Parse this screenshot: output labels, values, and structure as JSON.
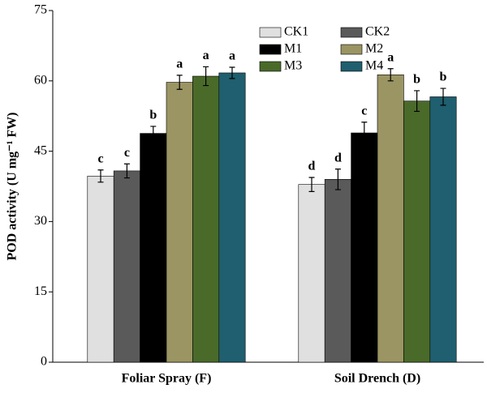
{
  "chart_data": {
    "type": "bar",
    "y_label": "POD activity (U mg⁻¹ FW)",
    "categories": [
      "Foliar Spray (F)",
      "Soil Drench (D)"
    ],
    "ylim": [
      0,
      75
    ],
    "yticks": [
      0,
      15,
      30,
      45,
      60,
      75
    ],
    "series": [
      {
        "name": "CK1",
        "color": "#e0e0e0",
        "values": [
          39.7,
          37.9
        ],
        "errors": [
          1.3,
          1.5
        ],
        "labels": [
          "c",
          "d"
        ]
      },
      {
        "name": "CK2",
        "color": "#5a5a5a",
        "values": [
          40.8,
          39.0
        ],
        "errors": [
          1.5,
          2.2
        ],
        "labels": [
          "c",
          "d"
        ]
      },
      {
        "name": "M1",
        "color": "#000000",
        "values": [
          48.8,
          48.9
        ],
        "errors": [
          1.5,
          2.3
        ],
        "labels": [
          "b",
          "c"
        ]
      },
      {
        "name": "M2",
        "color": "#9b9563",
        "values": [
          59.7,
          61.3
        ],
        "errors": [
          1.5,
          1.3
        ],
        "labels": [
          "a",
          "a"
        ]
      },
      {
        "name": "M3",
        "color": "#4a6a2a",
        "values": [
          61.0,
          55.7
        ],
        "errors": [
          2.0,
          2.2
        ],
        "labels": [
          "a",
          "b"
        ]
      },
      {
        "name": "M4",
        "color": "#1f5f6f",
        "values": [
          61.7,
          56.6
        ],
        "errors": [
          1.2,
          1.8
        ],
        "labels": [
          "a",
          "b"
        ]
      }
    ]
  }
}
